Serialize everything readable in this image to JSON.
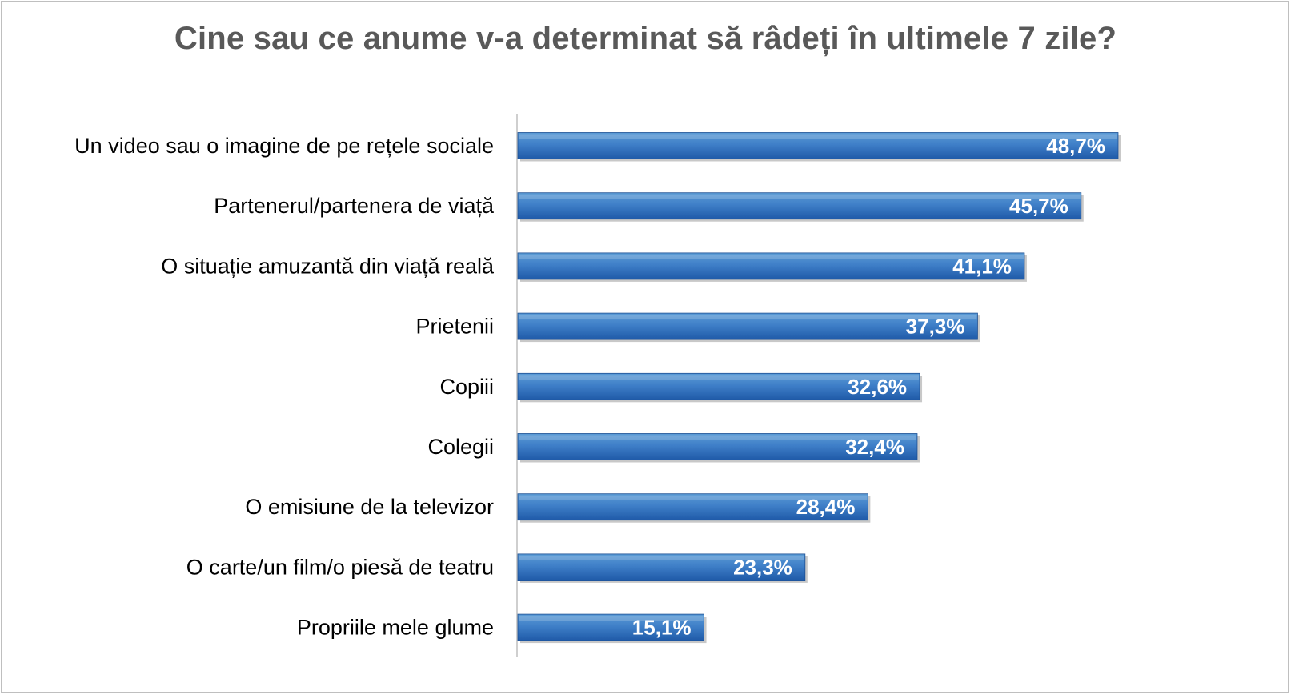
{
  "chart_data": {
    "type": "bar",
    "orientation": "horizontal",
    "title": "Cine sau ce anume v-a determinat să râdeți în ultimele 7 zile?",
    "categories": [
      "Un video sau o imagine de pe rețele sociale",
      "Partenerul/partenera de viață",
      "O situație amuzantă din viață reală",
      "Prietenii",
      "Copiii",
      "Colegii",
      "O emisiune de la televizor",
      "O carte/un film/o piesă de teatru",
      "Propriile mele glume"
    ],
    "values": [
      48.7,
      45.7,
      41.1,
      37.3,
      32.6,
      32.4,
      28.4,
      23.3,
      15.1
    ],
    "value_labels": [
      "48,7%",
      "45,7%",
      "41,1%",
      "37,3%",
      "32,6%",
      "32,4%",
      "28,4%",
      "23,3%",
      "15,1%"
    ],
    "unit": "%",
    "xlabel": "",
    "ylabel": "",
    "xlim": [
      0,
      100
    ],
    "grid": false,
    "legend": "none",
    "colors": {
      "bar_top": "#5b9bd5",
      "bar_bottom": "#1f5aa8",
      "bar_shadow": "#9a9a9a",
      "axis": "#bfbfbf",
      "title": "#595959"
    }
  }
}
